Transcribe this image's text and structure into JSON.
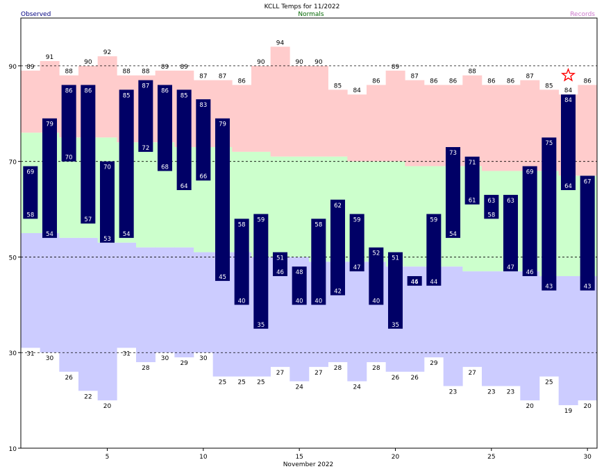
{
  "header": {
    "title": "KCLL Temps for 11/2022",
    "legend_observed": "Observed",
    "legend_normals": "Normals",
    "legend_records": "Records"
  },
  "colors": {
    "observed": "#000066",
    "records_high": "#ffcccc",
    "normals": "#ccffcc",
    "records_low": "#ccccff",
    "legend_observed": "#000080",
    "legend_normals": "#006600",
    "legend_records": "#cc77cc",
    "star": "#ff0000"
  },
  "chart_data": {
    "type": "bar",
    "xlabel": "November 2022",
    "ylim": [
      10,
      100
    ],
    "xlim": [
      0.5,
      30.5
    ],
    "yticks": [
      10,
      30,
      50,
      70,
      90
    ],
    "xticks": [
      5,
      10,
      15,
      20,
      25,
      30
    ],
    "dashed_gridlines": [
      30,
      50,
      70,
      90
    ],
    "days": [
      1,
      2,
      3,
      4,
      5,
      6,
      7,
      8,
      9,
      10,
      11,
      12,
      13,
      14,
      15,
      16,
      17,
      18,
      19,
      20,
      21,
      22,
      23,
      24,
      25,
      26,
      27,
      28,
      29,
      30
    ],
    "record_high": [
      89,
      91,
      88,
      90,
      92,
      88,
      88,
      89,
      89,
      87,
      87,
      86,
      90,
      94,
      90,
      90,
      85,
      84,
      86,
      89,
      87,
      86,
      86,
      88,
      86,
      86,
      87,
      85,
      84,
      86
    ],
    "record_low": [
      31,
      30,
      26,
      22,
      20,
      31,
      28,
      30,
      29,
      30,
      25,
      25,
      25,
      27,
      24,
      27,
      28,
      24,
      28,
      26,
      26,
      29,
      23,
      27,
      23,
      23,
      20,
      25,
      19,
      20
    ],
    "normal_high": [
      76,
      76,
      75,
      75,
      75,
      74,
      74,
      74,
      73,
      73,
      73,
      72,
      72,
      71,
      71,
      71,
      71,
      70,
      70,
      70,
      69,
      69,
      69,
      69,
      68,
      68,
      68,
      68,
      67,
      67
    ],
    "normal_low": [
      55,
      55,
      54,
      54,
      53,
      53,
      52,
      52,
      52,
      51,
      51,
      51,
      50,
      50,
      50,
      49,
      49,
      49,
      49,
      48,
      48,
      48,
      48,
      47,
      47,
      47,
      47,
      46,
      46,
      46
    ],
    "observed_high": [
      69,
      79,
      86,
      86,
      70,
      85,
      87,
      86,
      85,
      83,
      79,
      58,
      59,
      51,
      48,
      58,
      62,
      59,
      52,
      51,
      46,
      59,
      73,
      71,
      63,
      63,
      69,
      75,
      84,
      67
    ],
    "observed_low": [
      58,
      54,
      70,
      57,
      53,
      54,
      72,
      68,
      64,
      66,
      45,
      40,
      35,
      46,
      40,
      40,
      42,
      47,
      40,
      35,
      44,
      44,
      54,
      61,
      58,
      47,
      46,
      43,
      64,
      43
    ],
    "record_markers": [
      {
        "day": 29,
        "value": 88
      }
    ]
  }
}
